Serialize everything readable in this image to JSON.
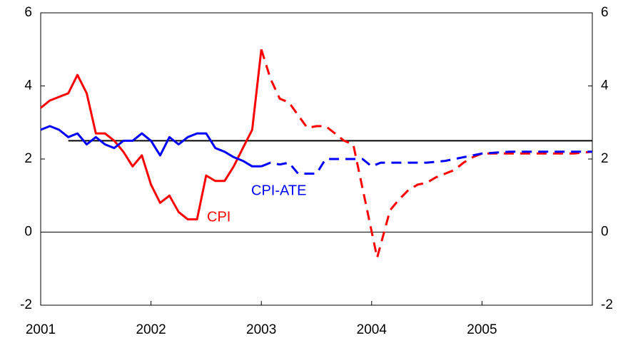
{
  "chart_data": {
    "type": "line",
    "xlim": [
      2001,
      2006
    ],
    "xticks": [
      2001,
      2002,
      2003,
      2004,
      2005
    ],
    "ylim": [
      -2,
      6
    ],
    "yticks": [
      -2,
      0,
      2,
      4,
      6
    ],
    "y2lim": [
      -2,
      6
    ],
    "y2ticks": [
      -2,
      0,
      2,
      4,
      6
    ],
    "hline": {
      "value": 2.5,
      "x": [
        2001.25,
        2006
      ],
      "color": "#000000"
    },
    "zero_line": true,
    "series": [
      {
        "name": "CPI",
        "color": "#ff0000",
        "dashed": false,
        "x": [
          2001.0,
          2001.083,
          2001.167,
          2001.25,
          2001.333,
          2001.417,
          2001.5,
          2001.583,
          2001.667,
          2001.75,
          2001.833,
          2001.917,
          2002.0,
          2002.083,
          2002.167,
          2002.25,
          2002.333,
          2002.417,
          2002.5,
          2002.583,
          2002.667,
          2002.75,
          2002.833,
          2002.917,
          2003.0
        ],
        "values": [
          3.4,
          3.6,
          3.7,
          3.8,
          4.3,
          3.8,
          2.7,
          2.7,
          2.5,
          2.2,
          1.8,
          2.1,
          1.3,
          0.8,
          1.0,
          0.55,
          0.35,
          0.35,
          1.55,
          1.4,
          1.4,
          1.8,
          2.3,
          2.8,
          5.0
        ]
      },
      {
        "name": "CPI",
        "color": "#ff0000",
        "dashed": true,
        "x": [
          2003.0,
          2003.083,
          2003.167,
          2003.25,
          2003.333,
          2003.417,
          2003.5,
          2003.583,
          2003.667,
          2003.75,
          2003.833,
          2003.917,
          2004.05,
          2004.167,
          2004.25,
          2004.333,
          2004.417,
          2004.5,
          2004.583,
          2004.667,
          2004.75,
          2004.833,
          2004.917,
          2005.0,
          2005.5,
          2005.833,
          2006.0
        ],
        "values": [
          5.0,
          4.2,
          3.65,
          3.55,
          3.2,
          2.85,
          2.9,
          2.9,
          2.7,
          2.5,
          2.4,
          1.2,
          -0.7,
          0.6,
          0.9,
          1.15,
          1.3,
          1.35,
          1.5,
          1.6,
          1.7,
          1.9,
          2.05,
          2.15,
          2.15,
          2.15,
          2.2
        ]
      },
      {
        "name": "CPI-ATE",
        "color": "#0000ff",
        "dashed": false,
        "x": [
          2001.0,
          2001.083,
          2001.167,
          2001.25,
          2001.333,
          2001.417,
          2001.5,
          2001.583,
          2001.667,
          2001.75,
          2001.833,
          2001.917,
          2002.0,
          2002.083,
          2002.167,
          2002.25,
          2002.333,
          2002.417,
          2002.5,
          2002.583,
          2002.667,
          2002.75,
          2002.833,
          2002.917,
          2003.0
        ],
        "values": [
          2.8,
          2.9,
          2.8,
          2.6,
          2.7,
          2.4,
          2.6,
          2.4,
          2.3,
          2.5,
          2.5,
          2.7,
          2.5,
          2.1,
          2.6,
          2.4,
          2.6,
          2.7,
          2.7,
          2.3,
          2.2,
          2.05,
          1.95,
          1.8,
          1.8
        ]
      },
      {
        "name": "CPI-ATE",
        "color": "#0000ff",
        "dashed": true,
        "x": [
          2003.0,
          2003.083,
          2003.167,
          2003.25,
          2003.333,
          2003.417,
          2003.5,
          2003.583,
          2003.667,
          2003.75,
          2003.833,
          2003.917,
          2004.0,
          2004.083,
          2004.5,
          2004.667,
          2004.75,
          2004.917,
          2005.0,
          2005.25,
          2006.0
        ],
        "values": [
          1.8,
          1.9,
          1.85,
          1.9,
          1.6,
          1.6,
          1.6,
          2.0,
          2.0,
          2.0,
          2.0,
          2.0,
          1.8,
          1.9,
          1.9,
          1.95,
          2.0,
          2.1,
          2.15,
          2.2,
          2.2
        ]
      }
    ]
  }
}
